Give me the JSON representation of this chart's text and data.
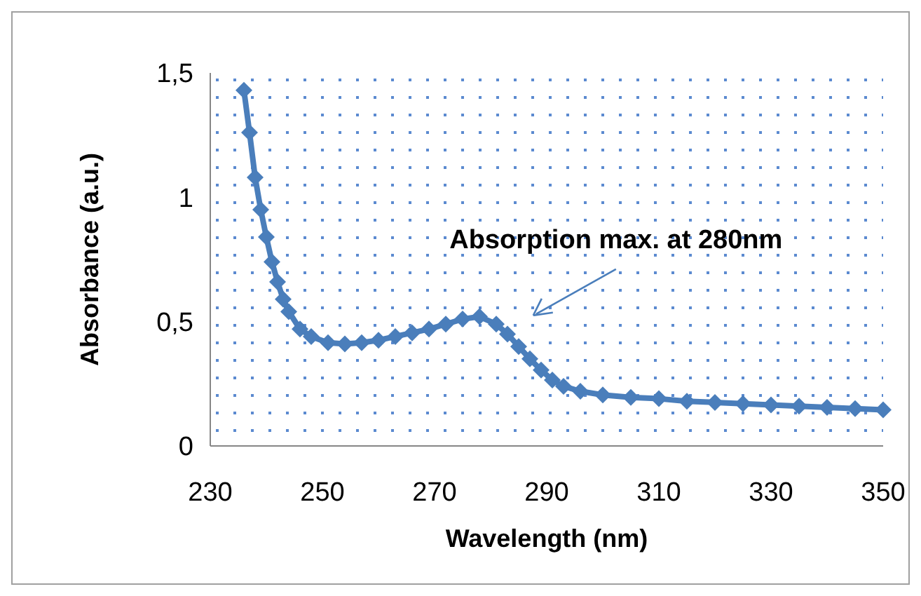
{
  "chart_data": {
    "type": "line",
    "xlabel": "Wavelength (nm)",
    "ylabel": "Absorbance (a.u.)",
    "xlim": [
      230,
      350
    ],
    "xticks": [
      230,
      250,
      270,
      290,
      310,
      330,
      350
    ],
    "ylim": [
      0,
      1.5
    ],
    "yticks": [
      0,
      {
        "value": 0.5,
        "label": "0,5"
      },
      1,
      {
        "value": 1.5,
        "label": "1,5"
      }
    ],
    "grid": false,
    "marker": "diamond",
    "line_style": "solid",
    "series": [
      {
        "color": "#4a7ebb",
        "x": [
          236,
          237,
          238,
          239,
          240,
          241,
          242,
          243,
          244,
          246,
          248,
          251,
          254,
          257,
          260,
          263,
          266,
          269,
          272,
          275,
          278,
          281,
          283,
          285,
          287,
          289,
          291,
          293,
          296,
          300,
          305,
          310,
          315,
          320,
          325,
          330,
          335,
          340,
          345,
          350
        ],
        "values": [
          1.43,
          1.26,
          1.08,
          0.95,
          0.84,
          0.74,
          0.66,
          0.59,
          0.54,
          0.47,
          0.44,
          0.415,
          0.41,
          0.415,
          0.425,
          0.44,
          0.455,
          0.47,
          0.49,
          0.51,
          0.52,
          0.49,
          0.45,
          0.4,
          0.35,
          0.305,
          0.265,
          0.24,
          0.22,
          0.205,
          0.195,
          0.19,
          0.18,
          0.175,
          0.17,
          0.165,
          0.16,
          0.155,
          0.15,
          0.145
        ]
      }
    ],
    "annotations": [
      "Absorption max. at 280nm"
    ]
  }
}
